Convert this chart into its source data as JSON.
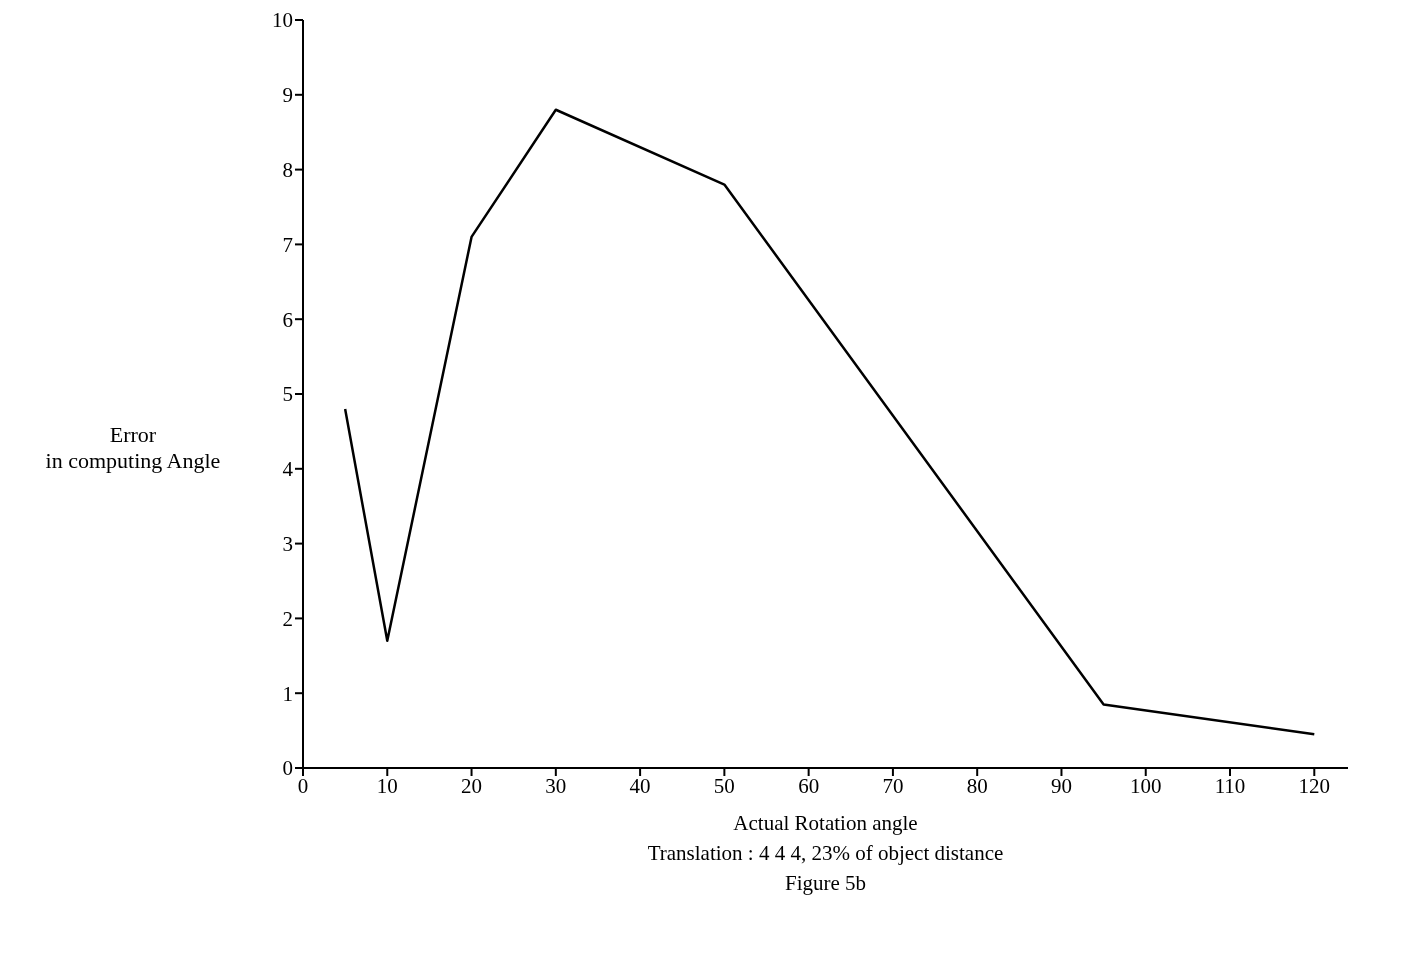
{
  "chart_data": {
    "type": "line",
    "xlabel": "Actual Rotation angle",
    "ylabel": "Error\nin computing Angle",
    "annotations": [
      "Translation : 4 4 4, 23% of object distance",
      "Figure 5b"
    ],
    "x": [
      5,
      10,
      20,
      30,
      50,
      95,
      120
    ],
    "series": [
      {
        "color": "#000000",
        "values": [
          4.8,
          1.7,
          7.1,
          8.8,
          7.8,
          0.85,
          0.45
        ]
      }
    ],
    "xlim": [
      0,
      124
    ],
    "xticks": [
      0,
      10,
      20,
      30,
      40,
      50,
      60,
      70,
      80,
      90,
      100,
      110,
      120
    ],
    "ylim": [
      0,
      10
    ],
    "yticks": [
      0,
      1,
      2,
      3,
      4,
      5,
      6,
      7,
      8,
      9,
      10
    ],
    "grid": false,
    "legend": false,
    "marker": "none",
    "line_style": "solid"
  }
}
